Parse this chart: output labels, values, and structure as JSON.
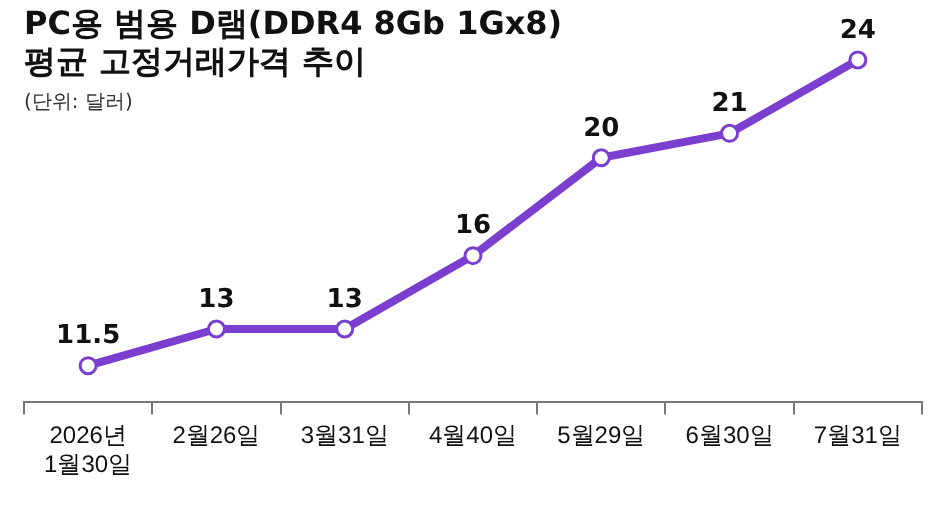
{
  "chart_data": {
    "type": "line",
    "title": "PC용 범용 D램(DDR4 8Gb 1Gx8) 평균 고정거래가격 추이",
    "subtitle": "(단위: 달러)",
    "categories": [
      "2026년 1월30일",
      "2월26일",
      "3월31일",
      "4월40일",
      "5월29일",
      "6월30일",
      "7월31일"
    ],
    "series": [
      {
        "color": "#7b3fd0",
        "values": [
          11.5,
          13,
          13,
          16,
          20,
          21,
          24
        ]
      }
    ],
    "data_labels": true,
    "legend": false,
    "grid": false,
    "marker": "circle",
    "line_style": "solid"
  }
}
